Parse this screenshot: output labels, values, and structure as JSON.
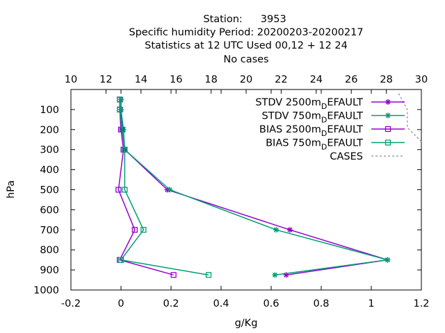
{
  "chart_data": {
    "type": "line",
    "title": {
      "station_label": "Station:",
      "station_id": "3953",
      "line2": "Specific humidity  Period: 20200203-20200217",
      "line3": "Statistics at 12 UTC  Used  00,12  + 12 24",
      "line4": "No cases"
    },
    "xlabel": "g/Kg",
    "ylabel": "hPa",
    "xlim": [
      -0.2,
      1.2
    ],
    "ylim": [
      1000,
      0
    ],
    "x_ticks": [
      "-0.2",
      "0",
      "0.2",
      "0.4",
      "0.6",
      "0.8",
      "1",
      "1.2"
    ],
    "x_tick_values": [
      -0.2,
      0,
      0.2,
      0.4,
      0.6,
      0.8,
      1.0,
      1.2
    ],
    "y_ticks": [
      "100",
      "200",
      "300",
      "400",
      "500",
      "600",
      "700",
      "800",
      "900",
      "1000"
    ],
    "y_tick_values": [
      100,
      200,
      300,
      400,
      500,
      600,
      700,
      800,
      900,
      1000
    ],
    "x2_ticks": [
      "10",
      "12",
      "14",
      "16",
      "18",
      "20",
      "22",
      "24",
      "26",
      "28",
      "30"
    ],
    "x2_tick_values": [
      10,
      12,
      14,
      16,
      18,
      20,
      22,
      24,
      26,
      28,
      30
    ],
    "x2lim": [
      10,
      30
    ],
    "legend_position": "top-right",
    "series": [
      {
        "name": "STDV 2500m",
        "name_sub": "D",
        "name_tail": "EFAULT",
        "color": "#9400d3",
        "marker": "star",
        "axis": "x",
        "points": [
          [
            0.0,
            50
          ],
          [
            0.0,
            100
          ],
          [
            0.005,
            200
          ],
          [
            0.015,
            300
          ],
          [
            0.185,
            500
          ],
          [
            0.675,
            700
          ],
          [
            1.065,
            850
          ],
          [
            0.66,
            925
          ]
        ]
      },
      {
        "name": "STDV 750m",
        "name_sub": "D",
        "name_tail": "EFAULT",
        "color": "#009e73",
        "marker": "star",
        "axis": "x",
        "points": [
          [
            0.0,
            50
          ],
          [
            0.0,
            100
          ],
          [
            0.01,
            200
          ],
          [
            0.015,
            300
          ],
          [
            0.195,
            500
          ],
          [
            0.62,
            700
          ],
          [
            1.065,
            850
          ],
          [
            0.615,
            925
          ]
        ]
      },
      {
        "name": "BIAS 2500m",
        "name_sub": "D",
        "name_tail": "EFAULT",
        "color": "#9400d3",
        "marker": "square",
        "axis": "x",
        "points": [
          [
            -0.005,
            50
          ],
          [
            -0.005,
            100
          ],
          [
            0.0,
            200
          ],
          [
            0.01,
            300
          ],
          [
            -0.01,
            500
          ],
          [
            0.055,
            700
          ],
          [
            -0.005,
            850
          ],
          [
            0.21,
            925
          ]
        ]
      },
      {
        "name": "BIAS 750m",
        "name_sub": "D",
        "name_tail": "EFAULT",
        "color": "#009e73",
        "marker": "square",
        "axis": "x",
        "points": [
          [
            -0.005,
            50
          ],
          [
            -0.005,
            100
          ],
          [
            0.005,
            200
          ],
          [
            0.015,
            300
          ],
          [
            0.015,
            500
          ],
          [
            0.09,
            700
          ],
          [
            0.0,
            850
          ],
          [
            0.35,
            925
          ]
        ]
      },
      {
        "name": "CASES",
        "color": "#a0a0a0",
        "marker": "none",
        "dashed": true,
        "axis": "x2",
        "points": [
          [
            28.7,
            20
          ],
          [
            29.2,
            100
          ],
          [
            29.2,
            190
          ],
          [
            30.0,
            260
          ]
        ]
      }
    ]
  }
}
